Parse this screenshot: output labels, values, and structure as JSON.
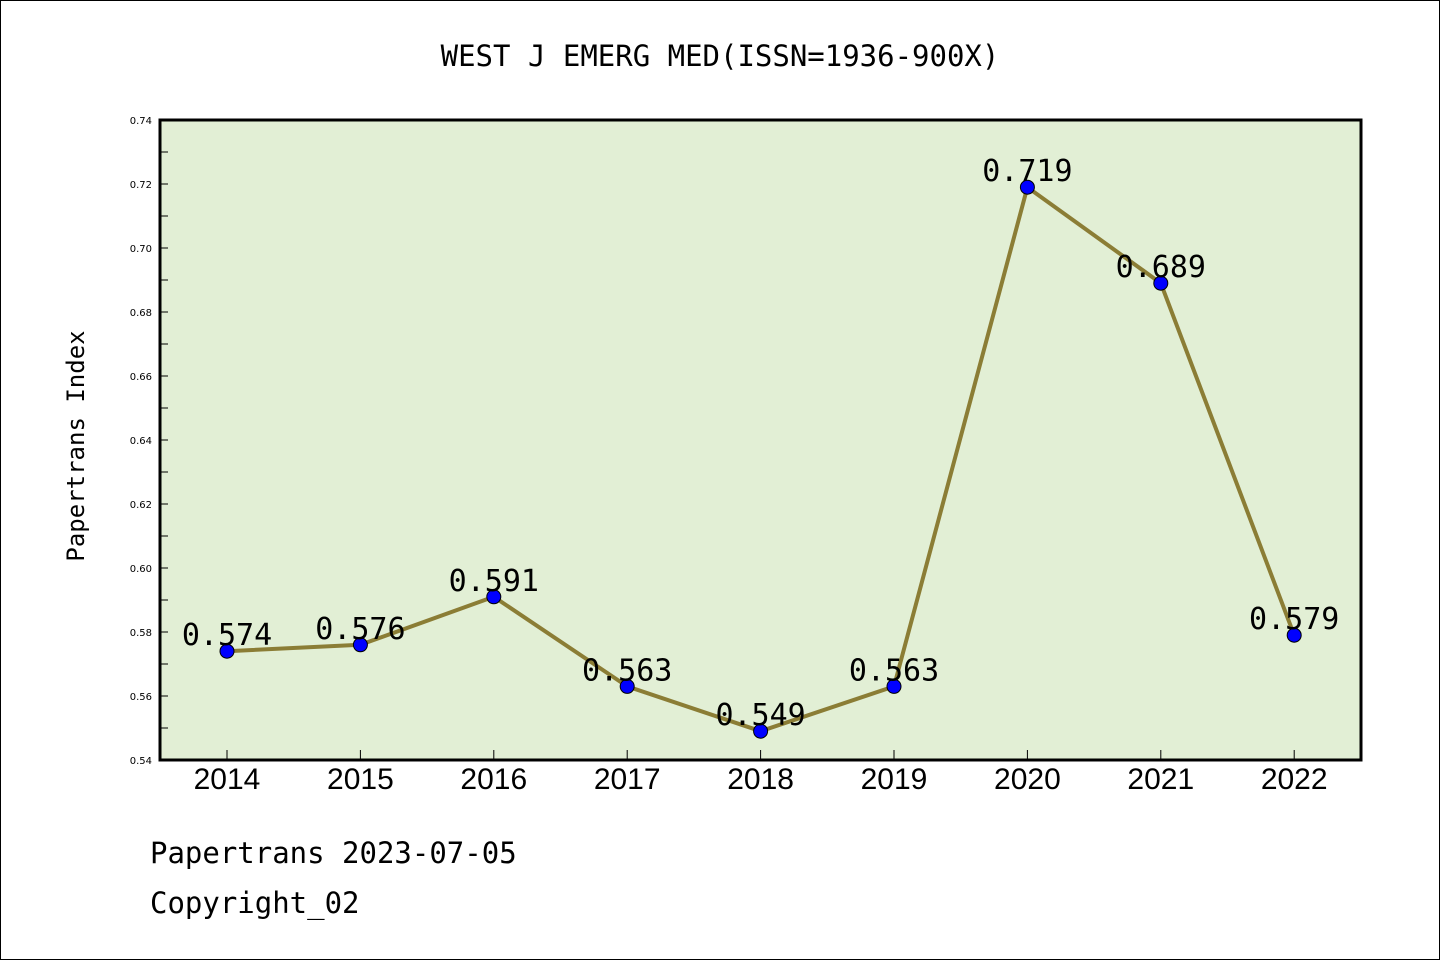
{
  "chart_data": {
    "type": "line",
    "title": "WEST J EMERG MED(ISSN=1936-900X)",
    "ylabel": "Papertrans Index",
    "xlabel": "",
    "categories": [
      "2014",
      "2015",
      "2016",
      "2017",
      "2018",
      "2019",
      "2020",
      "2021",
      "2022"
    ],
    "series": [
      {
        "values": [
          0.574,
          0.576,
          0.591,
          0.563,
          0.549,
          0.563,
          0.719,
          0.689,
          0.579
        ]
      }
    ],
    "data_labels": [
      "0.574",
      "0.576",
      "0.591",
      "0.563",
      "0.549",
      "0.563",
      "0.719",
      "0.689",
      "0.579"
    ],
    "ylim": [
      0.54,
      0.74
    ],
    "yticks": [
      "0.54",
      "0.56",
      "0.58",
      "0.60",
      "0.62",
      "0.64",
      "0.66",
      "0.68",
      "0.70",
      "0.72",
      "0.74"
    ],
    "grid": false,
    "legend": "none",
    "colors": {
      "plot_background": "#e2efd5",
      "line": "#8b7d35",
      "marker": "#0000ff"
    }
  },
  "footer": {
    "line1": "Papertrans 2023-07-05",
    "line2": "Copyright_02"
  }
}
